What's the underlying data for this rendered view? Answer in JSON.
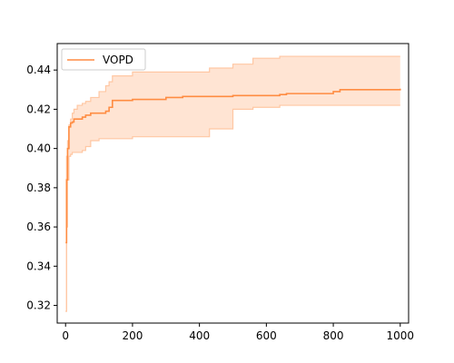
{
  "chart_data": {
    "type": "line",
    "title": "",
    "xlabel": "",
    "ylabel": "",
    "xlim": [
      -25,
      1025
    ],
    "ylim": [
      0.311,
      0.4535
    ],
    "xticks": [
      0,
      200,
      400,
      600,
      800,
      1000
    ],
    "yticks": [
      0.32,
      0.34,
      0.36,
      0.38,
      0.4,
      0.42,
      0.44
    ],
    "xtick_labels": [
      "0",
      "200",
      "400",
      "600",
      "800",
      "1000"
    ],
    "ytick_labels": [
      "0.32",
      "0.34",
      "0.36",
      "0.38",
      "0.40",
      "0.42",
      "0.44"
    ],
    "grid": false,
    "legend": {
      "position": "top-left",
      "entries": [
        "VOPD"
      ]
    },
    "colors": {
      "line": "#ff8c42",
      "band_fill": "#ffe4d3",
      "band_edge": "#ffc7a3"
    },
    "series": [
      {
        "name": "VOPD",
        "x": [
          0,
          3,
          6,
          10,
          15,
          20,
          25,
          35,
          50,
          60,
          75,
          100,
          120,
          130,
          140,
          180,
          200,
          260,
          300,
          350,
          430,
          500,
          560,
          640,
          660,
          800,
          820,
          1000
        ],
        "y": [
          0.352,
          0.384,
          0.4,
          0.411,
          0.413,
          0.4135,
          0.415,
          0.415,
          0.416,
          0.417,
          0.418,
          0.418,
          0.419,
          0.421,
          0.4245,
          0.4245,
          0.425,
          0.425,
          0.426,
          0.4265,
          0.4265,
          0.427,
          0.427,
          0.4275,
          0.428,
          0.429,
          0.43,
          0.4305
        ],
        "upper": [
          0.317,
          0.396,
          0.404,
          0.412,
          0.415,
          0.418,
          0.42,
          0.422,
          0.423,
          0.424,
          0.426,
          0.429,
          0.432,
          0.434,
          0.437,
          0.437,
          0.439,
          0.439,
          0.439,
          0.439,
          0.441,
          0.443,
          0.446,
          0.447,
          0.447,
          0.447,
          0.447,
          0.447
        ],
        "lower": [
          0.317,
          0.36,
          0.384,
          0.396,
          0.397,
          0.398,
          0.398,
          0.398,
          0.399,
          0.401,
          0.404,
          0.405,
          0.405,
          0.405,
          0.405,
          0.405,
          0.406,
          0.406,
          0.406,
          0.406,
          0.41,
          0.42,
          0.421,
          0.422,
          0.422,
          0.422,
          0.422,
          0.422
        ]
      }
    ]
  }
}
